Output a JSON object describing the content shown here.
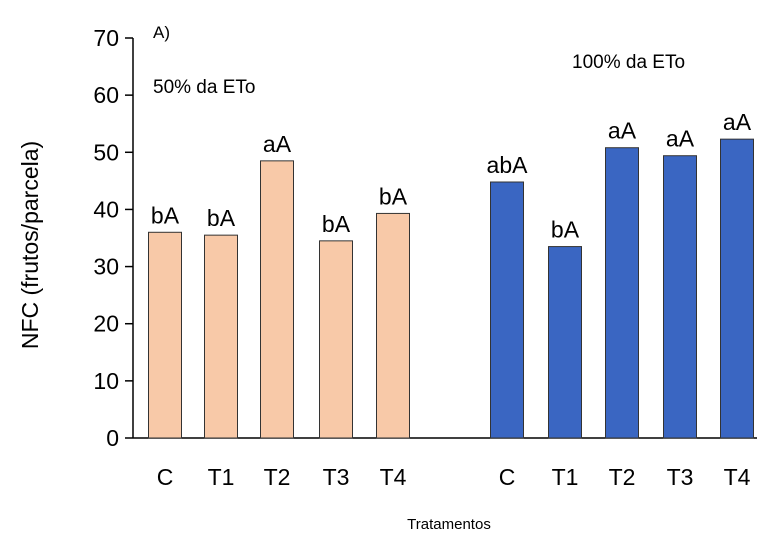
{
  "chart_data": {
    "type": "bar",
    "panel_tag": "A)",
    "xlabel": "Tratamentos",
    "ylabel": "NFC (frutos/parcela)",
    "ylim": [
      0,
      70
    ],
    "yticks": [
      0,
      10,
      20,
      30,
      40,
      50,
      60,
      70
    ],
    "grid": false,
    "groups": [
      {
        "annotation": "50% da ETo",
        "color": "#f8c9a8",
        "categories": [
          "C",
          "T1",
          "T2",
          "T3",
          "T4"
        ],
        "values": [
          36,
          35.5,
          48.5,
          34.5,
          39.3
        ],
        "labels": [
          "bA",
          "bA",
          "aA",
          "bA",
          "bA"
        ]
      },
      {
        "annotation": "100% da ETo",
        "color": "#3a66c2",
        "categories": [
          "C",
          "T1",
          "T2",
          "T3",
          "T4"
        ],
        "values": [
          44.8,
          33.5,
          50.8,
          49.4,
          52.3
        ],
        "labels": [
          "abA",
          "bA",
          "aA",
          "aA",
          "aA"
        ]
      }
    ]
  }
}
